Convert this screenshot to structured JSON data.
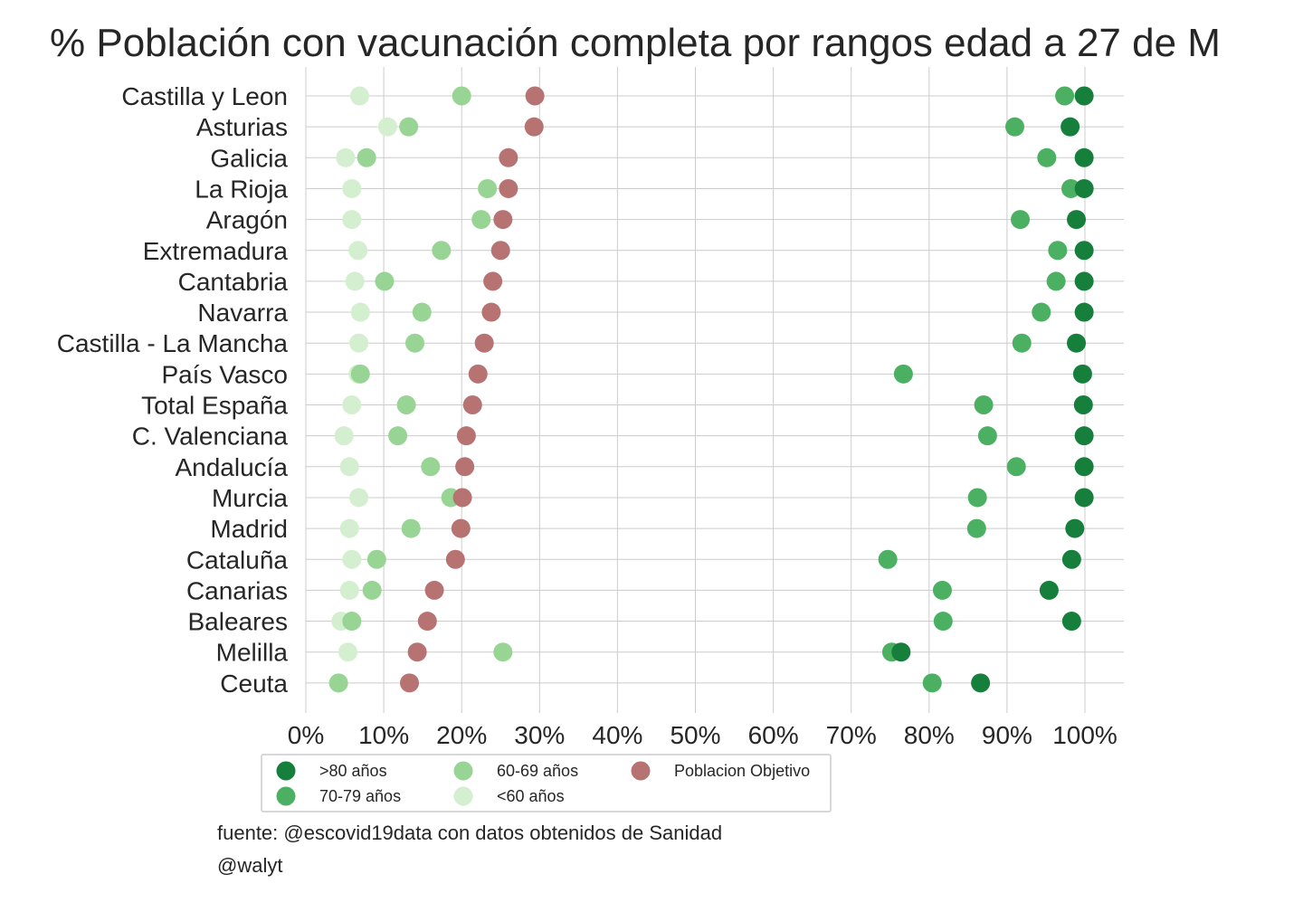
{
  "chart_data": {
    "type": "scatter",
    "title": "% Población con vacunación completa por rangos edad a 27 de M",
    "xlabel": "",
    "ylabel": "",
    "xlim": [
      0,
      105
    ],
    "x_ticks": [
      "0%",
      "10%",
      "20%",
      "30%",
      "40%",
      "50%",
      "60%",
      "70%",
      "80%",
      "90%",
      "100%"
    ],
    "grid": true,
    "legend_position": "bottom-left",
    "highlight_category": "Total España",
    "highlight_color": "#ff0000",
    "categories": [
      "Castilla y Leon",
      "Asturias ",
      "Galicia",
      "La Rioja",
      "Aragón",
      "Extremadura",
      "Cantabria",
      "Navarra",
      "Castilla - La Mancha",
      "País Vasco",
      "Total España",
      "C. Valenciana",
      "Andalucía",
      "Murcia",
      "Madrid",
      "Cataluña",
      "Canarias",
      "Baleares",
      "Melilla",
      "Ceuta"
    ],
    "series": [
      {
        "name": "<60 años",
        "color": "#d4efcf",
        "values": [
          6.9,
          10.5,
          5.1,
          5.9,
          5.9,
          6.7,
          6.3,
          7.0,
          6.8,
          6.7,
          5.9,
          4.9,
          5.6,
          6.8,
          5.6,
          5.9,
          5.6,
          4.5,
          5.4,
          4.2
        ]
      },
      {
        "name": "60-69 años",
        "color": "#98d594",
        "values": [
          20.0,
          13.2,
          7.8,
          23.3,
          22.5,
          17.4,
          10.1,
          14.9,
          14.0,
          7.0,
          12.9,
          11.8,
          16.0,
          18.6,
          13.5,
          9.1,
          8.5,
          5.9,
          25.3,
          4.2
        ]
      },
      {
        "name": "Poblacion Objetivo",
        "color": "#b77372",
        "values": [
          29.4,
          29.3,
          26.0,
          26.0,
          25.3,
          25.0,
          24.0,
          23.8,
          22.9,
          22.1,
          21.4,
          20.6,
          20.4,
          20.1,
          19.9,
          19.2,
          16.5,
          15.6,
          14.3,
          13.3
        ]
      },
      {
        "name": "70-79 años",
        "color": "#4bb062",
        "values": [
          97.4,
          91.0,
          95.1,
          98.2,
          91.7,
          96.5,
          96.3,
          94.4,
          91.9,
          76.7,
          87.0,
          87.5,
          91.2,
          86.2,
          86.1,
          74.7,
          81.7,
          81.8,
          75.2,
          80.4
        ]
      },
      {
        "name": ">80 años",
        "color": "#157f3b",
        "values": [
          99.9,
          98.1,
          99.9,
          99.9,
          98.9,
          99.9,
          99.9,
          99.9,
          98.9,
          99.7,
          99.8,
          99.9,
          99.9,
          99.9,
          98.7,
          98.3,
          95.4,
          98.3,
          76.4,
          86.6
        ]
      }
    ]
  },
  "legend": {
    "entries": [
      {
        "label": ">80 años",
        "color": "#157f3b"
      },
      {
        "label": "70-79 años",
        "color": "#4bb062"
      },
      {
        "label": "60-69 años",
        "color": "#98d594"
      },
      {
        "label": "<60 años",
        "color": "#d4efcf"
      },
      {
        "label": "Poblacion Objetivo",
        "color": "#b77372"
      }
    ]
  },
  "footer": {
    "source": "fuente: @escovid19data con datos obtenidos de Sanidad",
    "author": "@walyt"
  }
}
